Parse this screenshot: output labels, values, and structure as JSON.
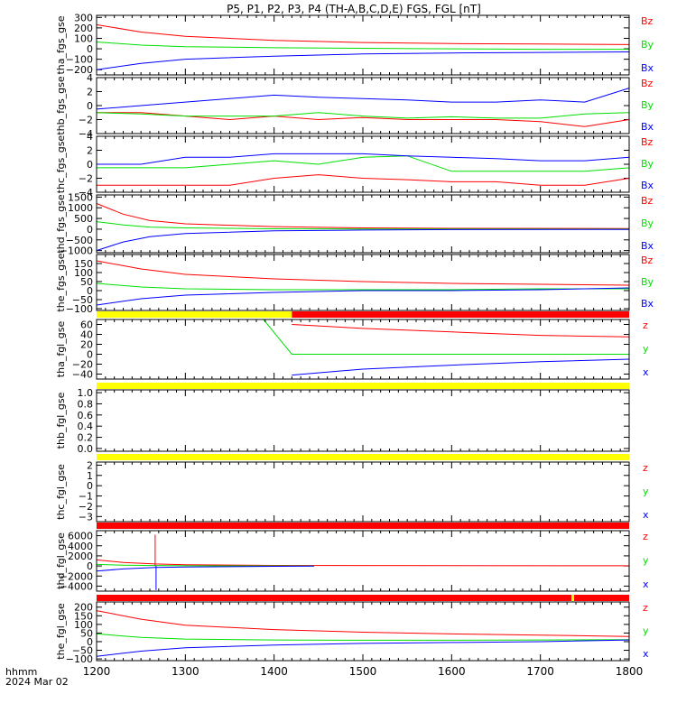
{
  "title": "P5, P1, P2, P3, P4 (TH-A,B,C,D,E) FGS, FGL [nT]",
  "footer": {
    "time_label": "hhmm",
    "date_label": "2024 Mar 02"
  },
  "colors": {
    "red": "#ff0000",
    "green": "#00e000",
    "blue": "#0000ff",
    "yellow": "#ffff00",
    "axis": "#000000"
  },
  "x_axis": {
    "min": 1200,
    "max": 1800,
    "ticks": [
      "1200",
      "1300",
      "1400",
      "1500",
      "1600",
      "1700",
      "1800"
    ]
  },
  "chart_data": [
    {
      "type": "line",
      "ylabel": "tha_fgs_gse",
      "ylim": [
        -250,
        320
      ],
      "yticks": [
        "300",
        "200",
        "100",
        "0",
        "−100",
        "−200"
      ],
      "legend": [
        "Bz",
        "By",
        "Bx"
      ],
      "series": [
        {
          "name": "Bz",
          "color": "red",
          "x": [
            1200,
            1250,
            1300,
            1400,
            1500,
            1600,
            1700,
            1800
          ],
          "y": [
            230,
            160,
            120,
            80,
            60,
            50,
            45,
            40
          ]
        },
        {
          "name": "By",
          "color": "green",
          "x": [
            1200,
            1250,
            1300,
            1400,
            1500,
            1600,
            1700,
            1800
          ],
          "y": [
            65,
            35,
            20,
            10,
            5,
            0,
            -5,
            -5
          ]
        },
        {
          "name": "Bx",
          "color": "blue",
          "x": [
            1200,
            1250,
            1300,
            1400,
            1500,
            1600,
            1700,
            1800
          ],
          "y": [
            -200,
            -140,
            -100,
            -70,
            -50,
            -40,
            -35,
            -30
          ]
        }
      ]
    },
    {
      "type": "line",
      "ylabel": "thb_fgs_gse",
      "ylim": [
        -4,
        4
      ],
      "yticks": [
        "4",
        "2",
        "0",
        "−2",
        "−4"
      ],
      "legend": [
        "Bz",
        "By",
        "Bx"
      ],
      "series": [
        {
          "name": "Bz",
          "color": "red",
          "x": [
            1200,
            1250,
            1300,
            1350,
            1400,
            1450,
            1500,
            1550,
            1600,
            1650,
            1700,
            1750,
            1800
          ],
          "y": [
            -1,
            -1,
            -1.5,
            -2,
            -1.5,
            -2,
            -1.7,
            -2,
            -2,
            -2,
            -2.3,
            -3,
            -2
          ]
        },
        {
          "name": "By",
          "color": "green",
          "x": [
            1200,
            1250,
            1300,
            1350,
            1400,
            1450,
            1500,
            1550,
            1600,
            1650,
            1700,
            1750,
            1800
          ],
          "y": [
            -1,
            -1.2,
            -1.5,
            -1.5,
            -1.5,
            -1,
            -1.5,
            -1.8,
            -1.6,
            -1.8,
            -1.8,
            -1.2,
            -1
          ]
        },
        {
          "name": "Bx",
          "color": "blue",
          "x": [
            1200,
            1250,
            1300,
            1350,
            1400,
            1450,
            1500,
            1550,
            1600,
            1650,
            1700,
            1750,
            1800
          ],
          "y": [
            -0.5,
            0,
            0.5,
            1,
            1.5,
            1.2,
            1,
            0.8,
            0.5,
            0.5,
            0.8,
            0.5,
            2.5
          ]
        }
      ]
    },
    {
      "type": "line",
      "ylabel": "thc_fgs_gse",
      "ylim": [
        -4,
        4
      ],
      "yticks": [
        "4",
        "2",
        "0",
        "−2",
        "−4"
      ],
      "legend": [
        "Bz",
        "By",
        "Bx"
      ],
      "series": [
        {
          "name": "Bz",
          "color": "red",
          "x": [
            1200,
            1250,
            1300,
            1350,
            1400,
            1450,
            1500,
            1550,
            1600,
            1650,
            1700,
            1750,
            1800
          ],
          "y": [
            -3,
            -3,
            -3,
            -3,
            -2,
            -1.5,
            -2,
            -2.2,
            -2.5,
            -2.5,
            -3,
            -3,
            -2
          ]
        },
        {
          "name": "By",
          "color": "green",
          "x": [
            1200,
            1250,
            1300,
            1350,
            1400,
            1450,
            1500,
            1550,
            1600,
            1650,
            1700,
            1750,
            1800
          ],
          "y": [
            -0.5,
            -0.5,
            -0.5,
            0,
            0.5,
            0,
            1,
            1.2,
            -1,
            -1,
            -1,
            -1,
            -0.5
          ]
        },
        {
          "name": "Bx",
          "color": "blue",
          "x": [
            1200,
            1250,
            1300,
            1350,
            1400,
            1450,
            1500,
            1550,
            1600,
            1650,
            1700,
            1750,
            1800
          ],
          "y": [
            0,
            0,
            1,
            1,
            1.5,
            1.5,
            1.5,
            1.2,
            1,
            0.8,
            0.5,
            0.5,
            1
          ]
        }
      ]
    },
    {
      "type": "line",
      "ylabel": "thd_fgs_gse",
      "ylim": [
        -1100,
        1600
      ],
      "yticks": [
        "1500",
        "1000",
        "500",
        "0",
        "−500",
        "−1000"
      ],
      "legend": [
        "Bz",
        "By",
        "Bx"
      ],
      "series": [
        {
          "name": "Bz",
          "color": "red",
          "x": [
            1200,
            1230,
            1260,
            1300,
            1400,
            1500,
            1600,
            1800
          ],
          "y": [
            1200,
            700,
            400,
            250,
            120,
            60,
            40,
            30
          ]
        },
        {
          "name": "By",
          "color": "green",
          "x": [
            1200,
            1230,
            1260,
            1300,
            1400,
            1500,
            1600,
            1800
          ],
          "y": [
            350,
            200,
            100,
            60,
            20,
            10,
            5,
            0
          ]
        },
        {
          "name": "Bx",
          "color": "blue",
          "x": [
            1200,
            1230,
            1260,
            1300,
            1400,
            1500,
            1600,
            1800
          ],
          "y": [
            -1000,
            -600,
            -350,
            -200,
            -80,
            -40,
            -20,
            -10
          ]
        }
      ]
    },
    {
      "type": "line",
      "ylabel": "the_fgs_gse",
      "ylim": [
        -110,
        200
      ],
      "yticks": [
        "150",
        "100",
        "50",
        "0",
        "−50",
        "−100"
      ],
      "legend": [
        "Bz",
        "By",
        "Bx"
      ],
      "series": [
        {
          "name": "Bz",
          "color": "red",
          "x": [
            1200,
            1250,
            1300,
            1400,
            1500,
            1600,
            1700,
            1800
          ],
          "y": [
            165,
            120,
            90,
            65,
            50,
            40,
            35,
            30
          ]
        },
        {
          "name": "By",
          "color": "green",
          "x": [
            1200,
            1250,
            1300,
            1400,
            1500,
            1600,
            1700,
            1800
          ],
          "y": [
            40,
            20,
            10,
            5,
            5,
            5,
            10,
            10
          ]
        },
        {
          "name": "Bx",
          "color": "blue",
          "x": [
            1200,
            1250,
            1300,
            1400,
            1500,
            1600,
            1700,
            1800
          ],
          "y": [
            -80,
            -45,
            -25,
            -10,
            0,
            0,
            5,
            15
          ]
        }
      ]
    },
    {
      "type": "line",
      "ylabel": "tha_fgl_gse",
      "ylim": [
        -50,
        70
      ],
      "yticks": [
        "60",
        "40",
        "20",
        "0",
        "−20",
        "−40"
      ],
      "legend": [
        "z",
        "y",
        "x"
      ],
      "status_bar": [
        {
          "from": 1200,
          "to": 1420,
          "color": "yellow"
        },
        {
          "from": 1420,
          "to": 1800,
          "color": "red"
        }
      ],
      "series": [
        {
          "name": "z",
          "color": "red",
          "x": [
            1420,
            1500,
            1600,
            1700,
            1800
          ],
          "y": [
            60,
            52,
            45,
            38,
            35
          ]
        },
        {
          "name": "y",
          "color": "green",
          "x": [
            1200,
            1388,
            1420,
            1500,
            1600,
            1700,
            1800
          ],
          "y": [
            70,
            70,
            0,
            0,
            0,
            0,
            0
          ]
        },
        {
          "name": "x",
          "color": "blue",
          "x": [
            1420,
            1500,
            1600,
            1700,
            1800
          ],
          "y": [
            -42,
            -30,
            -22,
            -15,
            -10
          ]
        }
      ]
    },
    {
      "type": "line",
      "ylabel": "thb_fgl_gse",
      "ylim": [
        -0.05,
        1.05
      ],
      "yticks": [
        "1.0",
        "0.8",
        "0.6",
        "0.4",
        "0.2",
        "0.0"
      ],
      "legend": [],
      "status_bar": [
        {
          "from": 1200,
          "to": 1800,
          "color": "yellow"
        }
      ],
      "series": []
    },
    {
      "type": "line",
      "ylabel": "thc_fgl_gse",
      "ylim": [
        -3.5,
        2.3
      ],
      "yticks": [
        "2",
        "1",
        "0",
        "−1",
        "−2",
        "−3"
      ],
      "legend": [
        "z",
        "y",
        "x"
      ],
      "status_bar": [
        {
          "from": 1200,
          "to": 1800,
          "color": "yellow"
        }
      ],
      "series": []
    },
    {
      "type": "line",
      "ylabel": "thd_fgl_gse",
      "ylim": [
        -5000,
        7000
      ],
      "yticks": [
        "6000",
        "4000",
        "2000",
        "0",
        "−2000",
        "−4000"
      ],
      "legend": [
        "z",
        "y",
        "x"
      ],
      "status_bar": [
        {
          "from": 1200,
          "to": 1800,
          "color": "red"
        }
      ],
      "spike": {
        "x": 1266,
        "z_max": 6200,
        "x_min": -4800
      },
      "series": [
        {
          "name": "z",
          "color": "red",
          "x": [
            1200,
            1230,
            1266,
            1300,
            1400,
            1800
          ],
          "y": [
            1200,
            700,
            400,
            250,
            100,
            30
          ]
        },
        {
          "name": "y",
          "color": "green",
          "x": [
            1200,
            1230,
            1266,
            1300,
            1445
          ],
          "y": [
            300,
            150,
            80,
            40,
            0
          ]
        },
        {
          "name": "x",
          "color": "blue",
          "x": [
            1200,
            1230,
            1266,
            1300,
            1400,
            1445
          ],
          "y": [
            -1000,
            -600,
            -300,
            -200,
            -80,
            -40
          ]
        }
      ]
    },
    {
      "type": "line",
      "ylabel": "the_fgl_gse",
      "ylim": [
        -110,
        230
      ],
      "yticks": [
        "200",
        "150",
        "100",
        "50",
        "0",
        "−50",
        "−100"
      ],
      "legend": [
        "z",
        "y",
        "x"
      ],
      "status_bar": [
        {
          "from": 1200,
          "to": 1735,
          "color": "red"
        },
        {
          "from": 1735,
          "to": 1738,
          "color": "yellow"
        },
        {
          "from": 1738,
          "to": 1800,
          "color": "red"
        }
      ],
      "series": [
        {
          "name": "z",
          "color": "red",
          "x": [
            1200,
            1250,
            1300,
            1400,
            1500,
            1600,
            1700,
            1800
          ],
          "y": [
            180,
            130,
            95,
            70,
            55,
            45,
            38,
            30
          ]
        },
        {
          "name": "y",
          "color": "green",
          "x": [
            1200,
            1250,
            1300,
            1400,
            1500,
            1600,
            1700,
            1800
          ],
          "y": [
            45,
            25,
            15,
            10,
            8,
            8,
            10,
            12
          ]
        },
        {
          "name": "x",
          "color": "blue",
          "x": [
            1200,
            1250,
            1300,
            1400,
            1500,
            1600,
            1700,
            1800
          ],
          "y": [
            -85,
            -55,
            -35,
            -20,
            -10,
            -5,
            0,
            10
          ]
        }
      ]
    }
  ]
}
